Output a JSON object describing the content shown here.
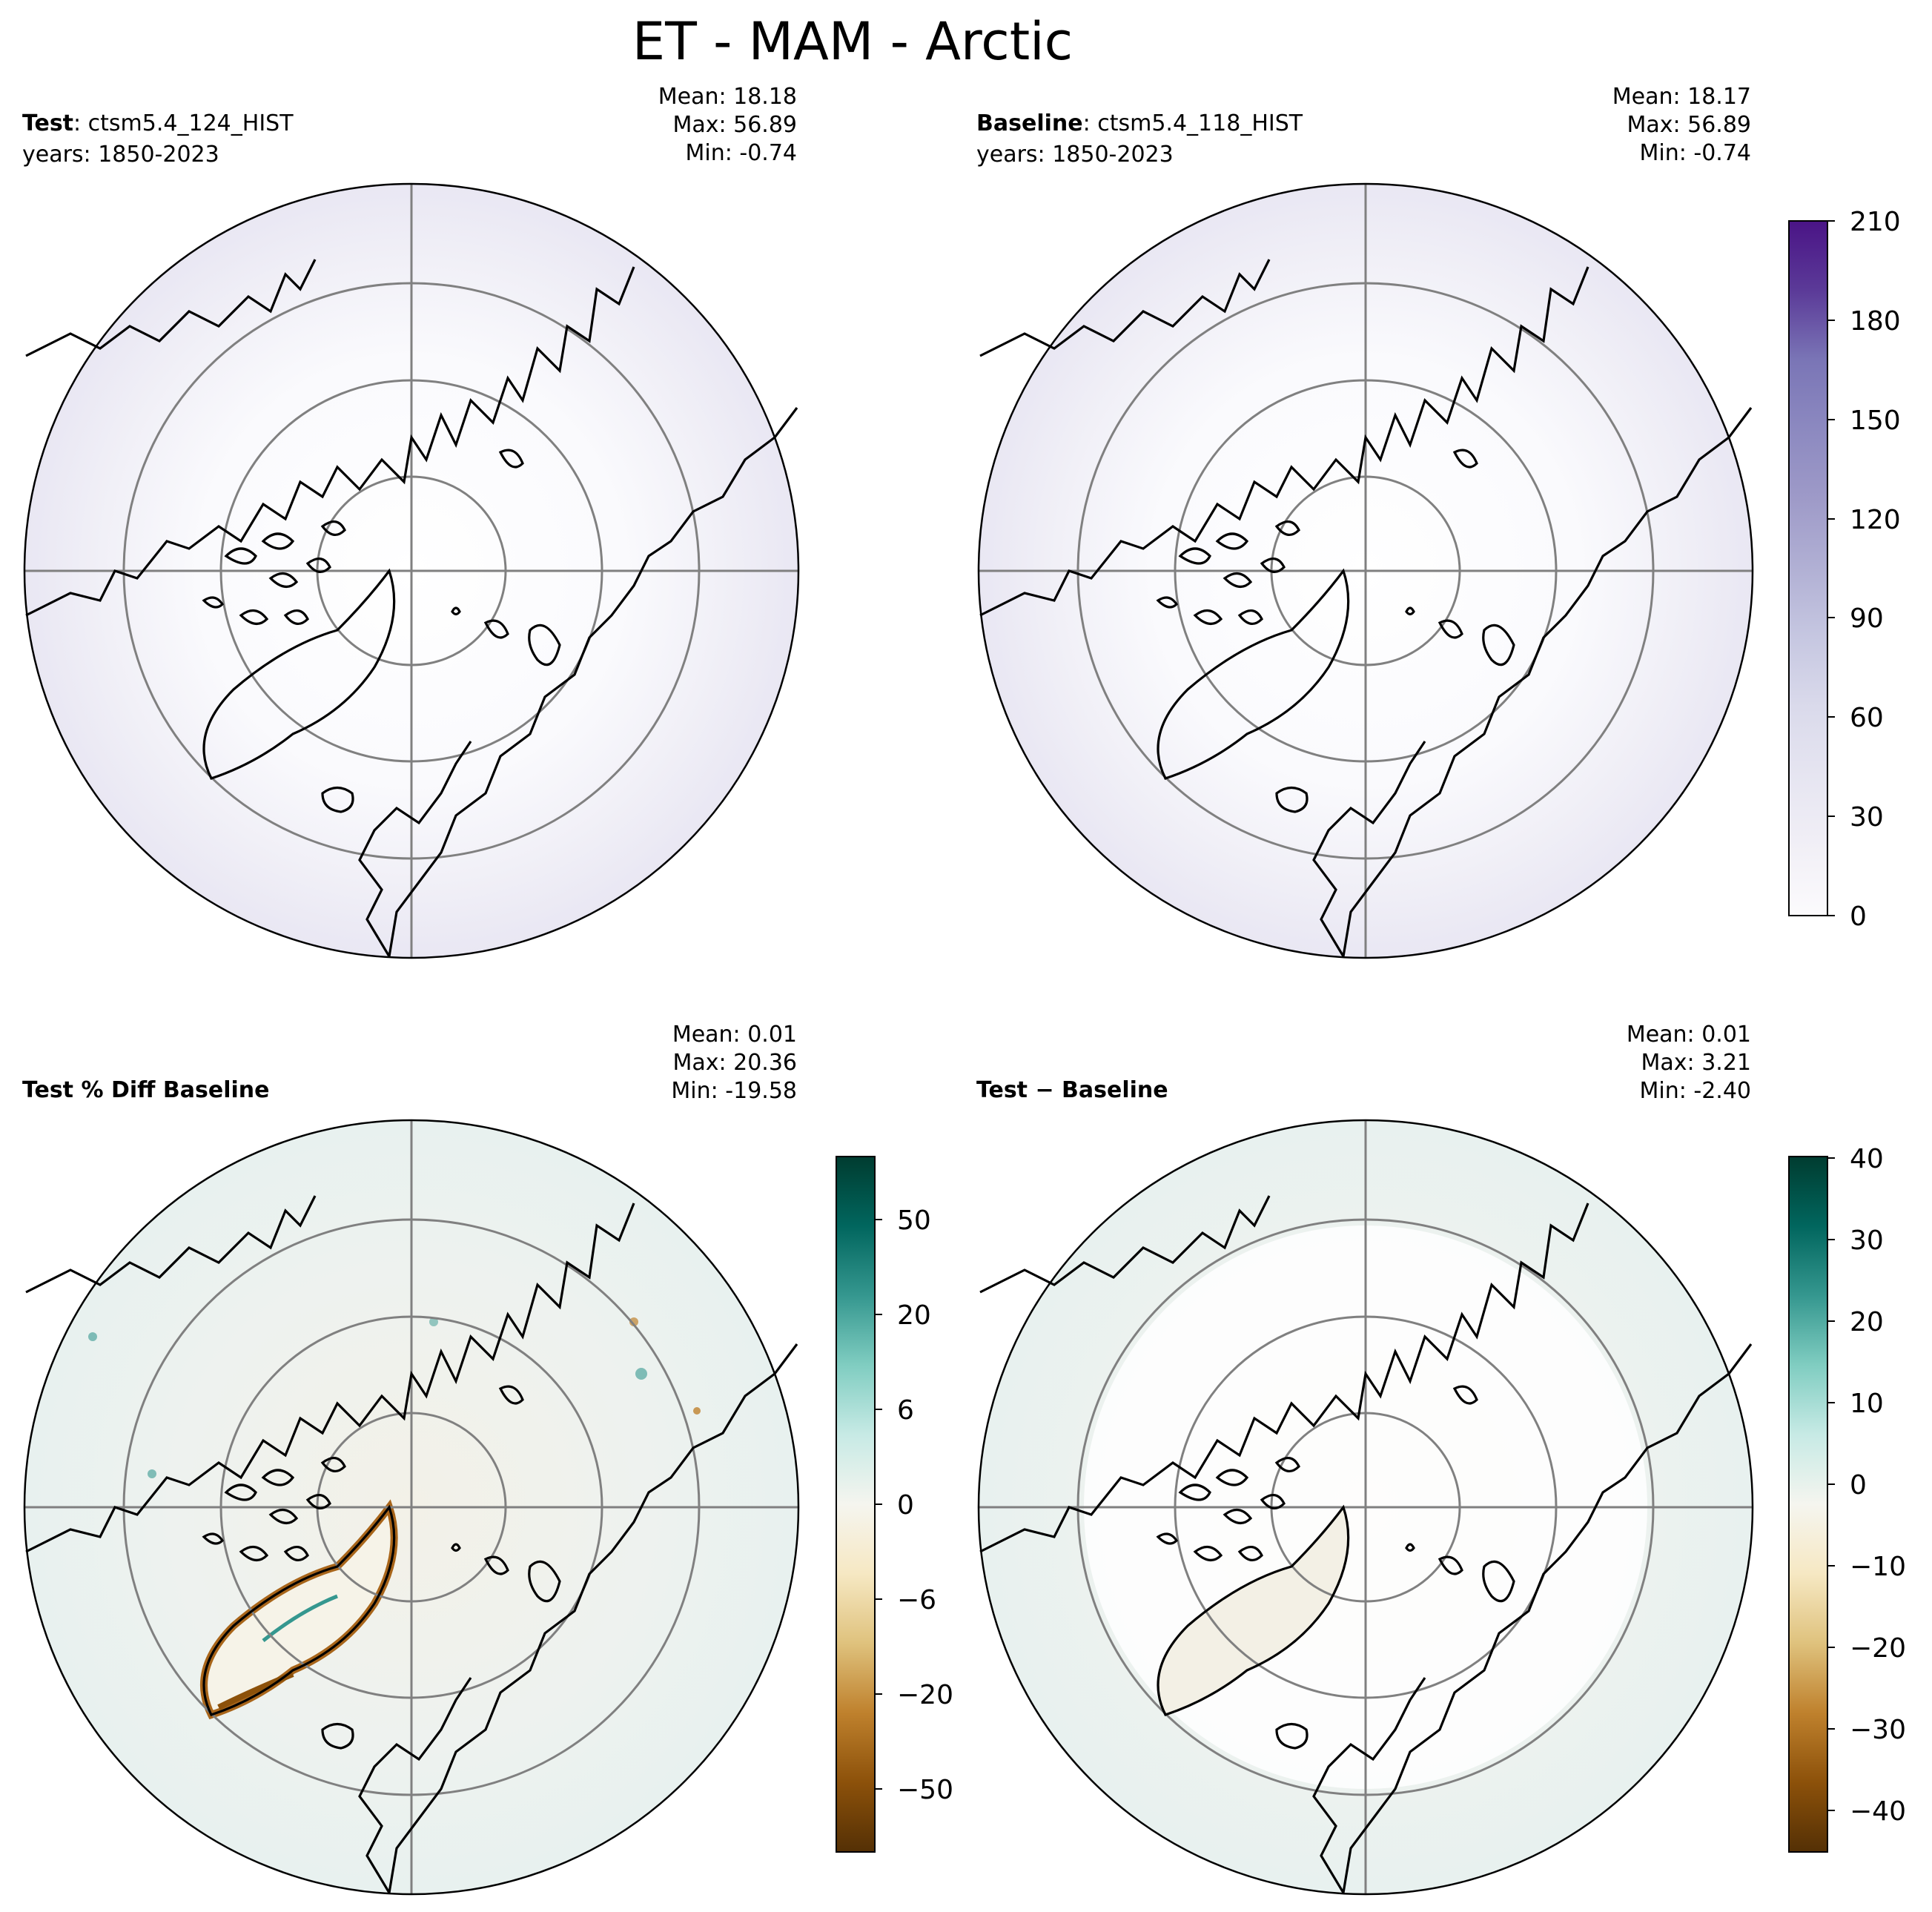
{
  "figure": {
    "title": "ET - MAM - Arctic"
  },
  "panels": [
    {
      "id": "test",
      "label_bold": "Test",
      "label_rest": ": ctsm5.4_124_HIST",
      "years": "years: 1850-2023",
      "stats": [
        "Mean: 18.18",
        "Max: 56.89",
        "Min: -0.74"
      ],
      "colormap": "purples"
    },
    {
      "id": "baseline",
      "label_bold": "Baseline",
      "label_rest": ": ctsm5.4_118_HIST",
      "years": "years: 1850-2023",
      "stats": [
        "Mean: 18.17",
        "Max: 56.89",
        "Min: -0.74"
      ],
      "colormap": "purples"
    },
    {
      "id": "pct-diff",
      "label_bold": "Test % Diff Baseline",
      "label_rest": "",
      "years": "",
      "stats": [
        "Mean:  0.01",
        "Max: 20.36",
        "Min: -19.58"
      ],
      "colormap": "brbg"
    },
    {
      "id": "diff",
      "label_bold": "Test − Baseline",
      "label_rest": "",
      "years": "",
      "stats": [
        "Mean:  0.01",
        "Max:  3.21",
        "Min: -2.40"
      ],
      "colormap": "brbg"
    }
  ],
  "colorbars": [
    {
      "id": "abs",
      "ticks": [
        "210",
        "180",
        "150",
        "120",
        "90",
        "60",
        "30",
        "0"
      ],
      "levels": 21,
      "colors": [
        "#fcfbfd",
        "#f1eff6",
        "#e6e5f1",
        "#dadaeb",
        "#c6c7e1",
        "#b1b0d4",
        "#9e9ac8",
        "#8c89c0",
        "#7a75b6",
        "#6a51a3",
        "#5b3a98",
        "#4a1486"
      ]
    },
    {
      "id": "pct",
      "ticks": [
        "50",
        "20",
        "6",
        "0",
        "−6",
        "−20",
        "−50"
      ],
      "colors": [
        "#543005",
        "#8c510a",
        "#bf812d",
        "#dfc27d",
        "#f6e8c3",
        "#f5f5f5",
        "#c7eae5",
        "#80cdc1",
        "#35978f",
        "#01665e",
        "#003c30"
      ]
    },
    {
      "id": "diff",
      "ticks": [
        "40",
        "30",
        "20",
        "10",
        "0",
        "−10",
        "−20",
        "−30",
        "−40"
      ],
      "colors": [
        "#543005",
        "#8c510a",
        "#bf812d",
        "#dfc27d",
        "#f6e8c3",
        "#f5f5f5",
        "#c7eae5",
        "#80cdc1",
        "#35978f",
        "#01665e",
        "#003c30"
      ]
    }
  ]
}
